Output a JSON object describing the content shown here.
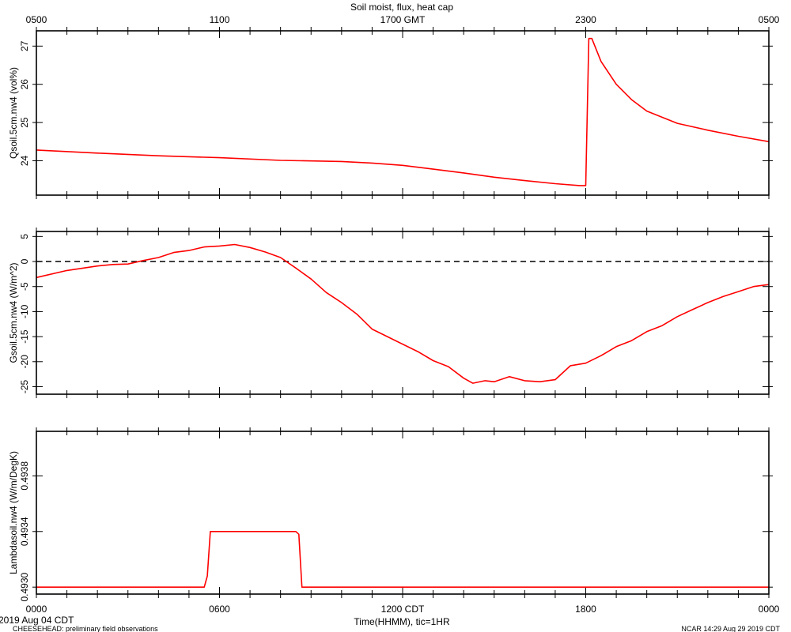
{
  "chart_data": {
    "type": "line",
    "title": "Soil moist, flux, heat cap",
    "top_axis": {
      "label_suffix": "GMT",
      "ticks": [
        {
          "t": 0,
          "label": "0500"
        },
        {
          "t": 6,
          "label": "1100"
        },
        {
          "t": 12,
          "label": "1700 GMT"
        },
        {
          "t": 18,
          "label": "2300"
        },
        {
          "t": 24,
          "label": "0500"
        }
      ]
    },
    "bottom_axis": {
      "xlabel": "Time(HHMM), tic=1HR",
      "ticks": [
        {
          "t": 0,
          "label": "0000"
        },
        {
          "t": 6,
          "label": "0600"
        },
        {
          "t": 12,
          "label": "1200 CDT"
        },
        {
          "t": 18,
          "label": "1800"
        },
        {
          "t": 24,
          "label": "0000"
        }
      ]
    },
    "footer": {
      "date_label": "2019 Aug 04 CDT",
      "left_note": "CHEESEHEAD: preliminary field observations",
      "right_note": "NCAR 14:29 Aug 29 2019 CDT"
    },
    "panels": [
      {
        "ylabel": "Qsoil.5cm.nw4 (vol%)",
        "ylim": [
          23.1,
          27.4
        ],
        "yticks": [
          {
            "v": 24,
            "label": "24"
          },
          {
            "v": 25,
            "label": "25"
          },
          {
            "v": 26,
            "label": "26"
          },
          {
            "v": 27,
            "label": "27"
          }
        ],
        "series": [
          {
            "color": "#ff0000",
            "points": [
              [
                0,
                24.28
              ],
              [
                2,
                24.2
              ],
              [
                4,
                24.13
              ],
              [
                6,
                24.08
              ],
              [
                8,
                24.01
              ],
              [
                10,
                23.98
              ],
              [
                11,
                23.94
              ],
              [
                12,
                23.88
              ],
              [
                13,
                23.78
              ],
              [
                14,
                23.68
              ],
              [
                15,
                23.57
              ],
              [
                16,
                23.48
              ],
              [
                17,
                23.4
              ],
              [
                17.8,
                23.35
              ],
              [
                18.0,
                23.35
              ],
              [
                18.1,
                27.2
              ],
              [
                18.2,
                27.2
              ],
              [
                18.5,
                26.6
              ],
              [
                19,
                26.0
              ],
              [
                19.5,
                25.6
              ],
              [
                20,
                25.3
              ],
              [
                21,
                24.98
              ],
              [
                22,
                24.8
              ],
              [
                23,
                24.64
              ],
              [
                24,
                24.5
              ]
            ]
          }
        ]
      },
      {
        "ylabel": "Gsoil.5cm.nw4 (W/m^2)",
        "ylim": [
          -26.5,
          6.0
        ],
        "yticks": [
          {
            "v": 5,
            "label": "5"
          },
          {
            "v": 0,
            "label": "0"
          },
          {
            "v": -5,
            "label": "-5"
          },
          {
            "v": -10,
            "label": "-10"
          },
          {
            "v": -15,
            "label": "-15"
          },
          {
            "v": -20,
            "label": "-20"
          },
          {
            "v": -25,
            "label": "-25"
          }
        ],
        "zero_line": true,
        "series": [
          {
            "color": "#ff0000",
            "points": [
              [
                0,
                -3.2
              ],
              [
                1,
                -1.8
              ],
              [
                2,
                -0.9
              ],
              [
                2.5,
                -0.6
              ],
              [
                3,
                -0.5
              ],
              [
                3.5,
                0.2
              ],
              [
                4,
                0.8
              ],
              [
                4.5,
                1.8
              ],
              [
                5,
                2.2
              ],
              [
                5.5,
                2.9
              ],
              [
                6,
                3.1
              ],
              [
                6.5,
                3.4
              ],
              [
                7,
                2.8
              ],
              [
                7.5,
                1.9
              ],
              [
                8,
                0.8
              ],
              [
                8.5,
                -1.3
              ],
              [
                9,
                -3.5
              ],
              [
                9.5,
                -6.2
              ],
              [
                10,
                -8.2
              ],
              [
                10.5,
                -10.5
              ],
              [
                11,
                -13.5
              ],
              [
                11.5,
                -15.0
              ],
              [
                12,
                -16.5
              ],
              [
                12.5,
                -18.0
              ],
              [
                13,
                -19.8
              ],
              [
                13.5,
                -21.0
              ],
              [
                14,
                -23.3
              ],
              [
                14.3,
                -24.3
              ],
              [
                14.7,
                -23.8
              ],
              [
                15,
                -24.0
              ],
              [
                15.5,
                -23.0
              ],
              [
                16,
                -23.8
              ],
              [
                16.5,
                -24.0
              ],
              [
                17,
                -23.6
              ],
              [
                17.5,
                -20.8
              ],
              [
                18,
                -20.3
              ],
              [
                18.5,
                -18.8
              ],
              [
                19,
                -17.0
              ],
              [
                19.5,
                -15.8
              ],
              [
                20,
                -14.0
              ],
              [
                20.5,
                -12.8
              ],
              [
                21,
                -11.0
              ],
              [
                21.5,
                -9.6
              ],
              [
                22,
                -8.2
              ],
              [
                22.5,
                -7.0
              ],
              [
                23,
                -6.0
              ],
              [
                23.5,
                -5.0
              ],
              [
                24,
                -4.6
              ]
            ]
          }
        ]
      },
      {
        "ylabel": "Lambdasoil.nw4 (W/m/DegK)",
        "ylim": [
          0.49295,
          0.49412
        ],
        "yticks": [
          {
            "v": 0.493,
            "label": "0.4930"
          },
          {
            "v": 0.4934,
            "label": "0.4934"
          },
          {
            "v": 0.4938,
            "label": "0.4938"
          }
        ],
        "series": [
          {
            "color": "#ff0000",
            "points": [
              [
                0,
                0.493
              ],
              [
                5.5,
                0.493
              ],
              [
                5.6,
                0.49308
              ],
              [
                5.7,
                0.4934
              ],
              [
                5.75,
                0.4934
              ],
              [
                8.5,
                0.4934
              ],
              [
                8.6,
                0.49338
              ],
              [
                8.7,
                0.493
              ],
              [
                24,
                0.493
              ]
            ]
          }
        ]
      }
    ]
  }
}
